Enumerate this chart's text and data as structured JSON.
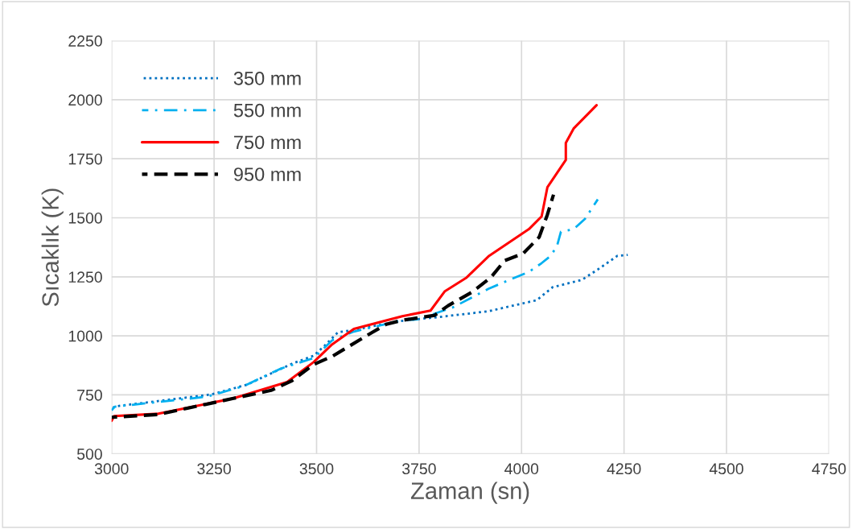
{
  "chart_data": {
    "type": "line",
    "xlabel": "Zaman (sn)",
    "ylabel": "Sıcaklık (K)",
    "xlim": [
      3000,
      4750
    ],
    "xticks": [
      3000,
      3250,
      3500,
      3750,
      4000,
      4250,
      4500,
      4750
    ],
    "ylim": [
      500,
      2250
    ],
    "yticks": [
      500,
      750,
      1000,
      1250,
      1500,
      1750,
      2000,
      2250
    ],
    "grid": true,
    "legend": "top left",
    "marker": "none",
    "series": [
      {
        "name": "350 mm",
        "color": "#0070c0",
        "line_style": "dotted",
        "x": [
          3000,
          3008,
          3244,
          3330,
          3440,
          3493,
          3519,
          3552,
          3591,
          3700,
          3800,
          3919,
          4037,
          4076,
          4147,
          4186,
          4234,
          4259
        ],
        "values": [
          690,
          701,
          752,
          793,
          882,
          916,
          957,
          1015,
          1025,
          1062,
          1080,
          1104,
          1151,
          1206,
          1237,
          1281,
          1339,
          1343
        ]
      },
      {
        "name": "550 mm",
        "color": "#00b0f0",
        "line_style": "dashdot",
        "x": [
          3000,
          3008,
          3232,
          3322,
          3414,
          3493,
          3538,
          3591,
          3709,
          3748,
          3833,
          3919,
          3984,
          4018,
          4049,
          4069,
          4086,
          4096,
          4127,
          4155,
          4186
        ],
        "values": [
          685,
          700,
          742,
          787,
          862,
          906,
          981,
          1018,
          1066,
          1070,
          1121,
          1199,
          1247,
          1271,
          1308,
          1336,
          1377,
          1441,
          1452,
          1496,
          1578
        ]
      },
      {
        "name": "750 mm",
        "color": "#ff0000",
        "line_style": "solid",
        "x": [
          3000,
          3006,
          3114,
          3297,
          3428,
          3493,
          3538,
          3591,
          3709,
          3778,
          3813,
          3866,
          3921,
          4018,
          4049,
          4063,
          4108,
          4108,
          4127,
          4183
        ],
        "values": [
          640,
          660,
          670,
          735,
          804,
          889,
          964,
          1029,
          1083,
          1107,
          1189,
          1247,
          1339,
          1452,
          1506,
          1629,
          1745,
          1817,
          1878,
          1977
        ]
      },
      {
        "name": "950 mm",
        "color": "#000000",
        "line_style": "dashed",
        "x": [
          3000,
          3114,
          3297,
          3389,
          3440,
          3493,
          3538,
          3636,
          3670,
          3709,
          3788,
          3821,
          3880,
          3925,
          3959,
          4004,
          4043,
          4063,
          4078
        ],
        "values": [
          655,
          667,
          735,
          769,
          810,
          879,
          913,
          1015,
          1049,
          1066,
          1087,
          1128,
          1186,
          1247,
          1319,
          1349,
          1418,
          1513,
          1598
        ]
      }
    ]
  }
}
